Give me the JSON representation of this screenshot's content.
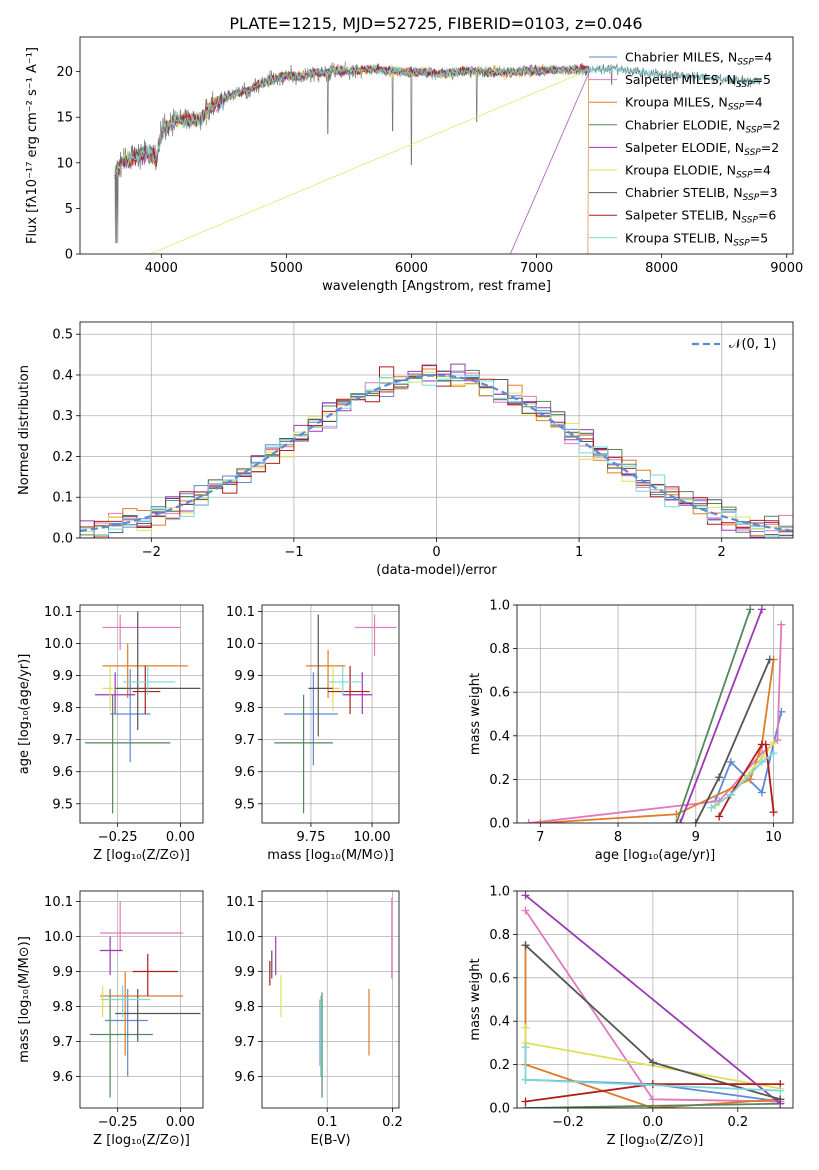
{
  "figure": {
    "title": "PLATE=1215, MJD=52725, FIBERID=0103, z=0.046"
  },
  "model_colors": [
    "#5b8ad6",
    "#e278bd",
    "#e07b28",
    "#55875a",
    "#9b3ab5",
    "#dfe05a",
    "#555555",
    "#b01c1c",
    "#7ad8dc"
  ],
  "chart_data": [
    {
      "id": "spectrum",
      "type": "line",
      "xlabel": "wavelength [Angstrom, rest frame]",
      "ylabel": "Flux [fλ10⁻¹⁷ erg cm⁻² s⁻¹ A⁻¹]",
      "xlim": [
        3350,
        9050
      ],
      "ylim": [
        0,
        23.8
      ],
      "xticks": [
        4000,
        5000,
        6000,
        7000,
        8000,
        9000
      ],
      "yticks": [
        0,
        5,
        10,
        15,
        20
      ],
      "legend_position": "upper-right",
      "legend": [
        {
          "label": "Chabrier MILES, N",
          "sub": "SSP",
          "suffix": "=4"
        },
        {
          "label": "Salpeter MILES, N",
          "sub": "SSP",
          "suffix": "=5"
        },
        {
          "label": "Kroupa MILES, N",
          "sub": "SSP",
          "suffix": "=4"
        },
        {
          "label": "Chabrier ELODIE, N",
          "sub": "SSP",
          "suffix": "=2"
        },
        {
          "label": "Salpeter ELODIE, N",
          "sub": "SSP",
          "suffix": "=2"
        },
        {
          "label": "Kroupa ELODIE, N",
          "sub": "SSP",
          "suffix": "=4"
        },
        {
          "label": "Chabrier STELIB, N",
          "sub": "SSP",
          "suffix": "=3"
        },
        {
          "label": "Salpeter STELIB, N",
          "sub": "SSP",
          "suffix": "=6"
        },
        {
          "label": "Kroupa STELIB, N",
          "sub": "SSP",
          "suffix": "=5"
        }
      ],
      "continuum": [
        [
          3630,
          9
        ],
        [
          3700,
          10.2
        ],
        [
          3800,
          10.6
        ],
        [
          3900,
          11.2
        ],
        [
          3960,
          10.3
        ],
        [
          4000,
          13.5
        ],
        [
          4100,
          14.6
        ],
        [
          4200,
          14.8
        ],
        [
          4300,
          14.6
        ],
        [
          4400,
          16.2
        ],
        [
          4500,
          17.0
        ],
        [
          4600,
          17.6
        ],
        [
          4700,
          18.0
        ],
        [
          4800,
          18.8
        ],
        [
          4900,
          19.1
        ],
        [
          5000,
          19.6
        ],
        [
          5100,
          19.4
        ],
        [
          5200,
          19.8
        ],
        [
          5300,
          19.9
        ],
        [
          5400,
          20.1
        ],
        [
          5500,
          20.0
        ],
        [
          5600,
          20.2
        ],
        [
          5700,
          20.3
        ],
        [
          5800,
          20.1
        ],
        [
          5900,
          20.0
        ],
        [
          6000,
          19.9
        ],
        [
          6100,
          20.0
        ],
        [
          6200,
          19.8
        ],
        [
          6300,
          19.9
        ],
        [
          6400,
          20.0
        ],
        [
          6500,
          20.1
        ],
        [
          6600,
          20.0
        ],
        [
          6700,
          20.0
        ],
        [
          6800,
          19.9
        ],
        [
          6900,
          20.1
        ],
        [
          7000,
          20.1
        ],
        [
          7200,
          20.2
        ],
        [
          7400,
          20.2
        ],
        [
          7600,
          20.3
        ],
        [
          7800,
          20.0
        ],
        [
          8000,
          19.7
        ],
        [
          8200,
          19.5
        ],
        [
          8400,
          19.3
        ],
        [
          8600,
          19.0
        ],
        [
          8800,
          18.9
        ]
      ],
      "data_range": [
        3630,
        8800
      ],
      "model_range": [
        3630,
        7420
      ],
      "data_dips": [
        [
          6000,
          9.8
        ],
        [
          5330,
          13.2
        ],
        [
          5850,
          13.5
        ],
        [
          6520,
          14.5
        ],
        [
          7600,
          18.6
        ]
      ],
      "model_drops": [
        {
          "model": 5,
          "x": 3910
        },
        {
          "model": 4,
          "x": 6790
        },
        {
          "model": 2,
          "x": 7410
        }
      ]
    },
    {
      "id": "residual-histogram",
      "type": "line",
      "xlabel": "(data-model)/error",
      "ylabel": "Normed distribution",
      "xlim": [
        -2.5,
        2.5
      ],
      "ylim": [
        0,
        0.53
      ],
      "xticks": [
        -2,
        -1,
        0,
        1,
        2
      ],
      "yticks": [
        0.0,
        0.1,
        0.2,
        0.3,
        0.4,
        0.5
      ],
      "legend_position": "upper-right",
      "gaussian_label": "𝒩(0, 1)",
      "gaussian_color": "#5b8ad6",
      "bin_width": 0.1
    },
    {
      "id": "age-vs-z",
      "type": "scatter",
      "xlabel": "Z [log₁₀(Z/Z⊙)]",
      "ylabel": "age  [log₁₀(age/yr)]",
      "xlim": [
        -0.4,
        0.09
      ],
      "ylim": [
        9.44,
        10.12
      ],
      "xticks": [
        -0.25,
        0.0
      ],
      "yticks": [
        9.5,
        9.6,
        9.7,
        9.8,
        9.9,
        10.0,
        10.1
      ],
      "points": [
        {
          "x": -0.2,
          "y": 9.78,
          "xe": [
            -0.28,
            -0.12
          ],
          "ye": [
            9.63,
            9.92
          ]
        },
        {
          "x": -0.24,
          "y": 10.05,
          "xe": [
            -0.31,
            0.0
          ],
          "ye": [
            9.98,
            10.09
          ]
        },
        {
          "x": -0.21,
          "y": 9.93,
          "xe": [
            -0.31,
            0.03
          ],
          "ye": [
            9.83,
            10.0
          ]
        },
        {
          "x": -0.27,
          "y": 9.69,
          "xe": [
            -0.38,
            -0.04
          ],
          "ye": [
            9.47,
            9.84
          ]
        },
        {
          "x": -0.26,
          "y": 9.84,
          "xe": [
            -0.34,
            -0.18
          ],
          "ye": [
            9.78,
            9.91
          ]
        },
        {
          "x": -0.28,
          "y": 9.86,
          "xe": [
            -0.31,
            -0.22
          ],
          "ye": [
            9.79,
            9.93
          ]
        },
        {
          "x": -0.17,
          "y": 9.86,
          "xe": [
            -0.26,
            0.08
          ],
          "ye": [
            9.73,
            10.1
          ]
        },
        {
          "x": -0.14,
          "y": 9.85,
          "xe": [
            -0.19,
            -0.08
          ],
          "ye": [
            9.78,
            9.93
          ]
        },
        {
          "x": -0.13,
          "y": 9.88,
          "xe": [
            -0.23,
            -0.02
          ],
          "ye": [
            9.84,
            9.93
          ]
        }
      ]
    },
    {
      "id": "age-vs-mass",
      "type": "scatter",
      "xlabel": "mass [log₁₀(M/M⊙)]",
      "ylabel": "",
      "xlim": [
        9.55,
        10.11
      ],
      "ylim": [
        9.44,
        10.12
      ],
      "xticks": [
        9.75,
        10.0
      ],
      "yticks": [
        9.5,
        9.6,
        9.7,
        9.8,
        9.9,
        10.0,
        10.1
      ],
      "points": [
        {
          "x": 9.76,
          "y": 9.78,
          "xe": [
            9.64,
            9.86
          ],
          "ye": [
            9.62,
            9.91
          ]
        },
        {
          "x": 10.01,
          "y": 10.05,
          "xe": [
            9.93,
            10.1
          ],
          "ye": [
            9.96,
            10.09
          ]
        },
        {
          "x": 9.82,
          "y": 9.93,
          "xe": [
            9.73,
            9.89
          ],
          "ye": [
            9.83,
            9.98
          ]
        },
        {
          "x": 9.72,
          "y": 9.69,
          "xe": [
            9.6,
            9.84
          ],
          "ye": [
            9.47,
            9.84
          ]
        },
        {
          "x": 9.96,
          "y": 9.84,
          "xe": [
            9.88,
            10.0
          ],
          "ye": [
            9.78,
            9.91
          ]
        },
        {
          "x": 9.84,
          "y": 9.86,
          "xe": [
            9.8,
            9.87
          ],
          "ye": [
            9.79,
            9.93
          ]
        },
        {
          "x": 9.78,
          "y": 9.86,
          "xe": [
            9.74,
            9.84
          ],
          "ye": [
            9.71,
            10.09
          ]
        },
        {
          "x": 9.91,
          "y": 9.85,
          "xe": [
            9.82,
            9.99
          ],
          "ye": [
            9.78,
            9.93
          ]
        },
        {
          "x": 9.88,
          "y": 9.88,
          "xe": [
            9.82,
            9.96
          ],
          "ye": [
            9.84,
            9.93
          ]
        }
      ]
    },
    {
      "id": "mass-weight-vs-age",
      "type": "line",
      "xlabel": "age  [log₁₀(age/yr)]",
      "ylabel": "mass weight",
      "xlim": [
        6.7,
        10.25
      ],
      "ylim": [
        0,
        1
      ],
      "xticks": [
        7,
        8,
        9,
        10
      ],
      "yticks": [
        0.0,
        0.2,
        0.4,
        0.6,
        0.8,
        1.0
      ],
      "series": [
        {
          "points": [
            [
              9.25,
              0.1
            ],
            [
              9.45,
              0.28
            ],
            [
              9.85,
              0.14
            ],
            [
              10.1,
              0.51
            ]
          ]
        },
        {
          "points": [
            [
              6.85,
              0.0
            ],
            [
              9.3,
              0.1
            ],
            [
              9.85,
              0.32
            ],
            [
              10.05,
              0.38
            ],
            [
              10.1,
              0.91
            ]
          ]
        },
        {
          "points": [
            [
              7.0,
              0.0
            ],
            [
              8.75,
              0.04
            ],
            [
              9.7,
              0.2
            ],
            [
              9.85,
              0.36
            ],
            [
              10.0,
              0.75
            ]
          ]
        },
        {
          "points": [
            [
              8.75,
              0.0
            ],
            [
              9.7,
              0.98
            ]
          ]
        },
        {
          "points": [
            [
              8.8,
              0.0
            ],
            [
              9.85,
              0.98
            ]
          ]
        },
        {
          "points": [
            [
              9.25,
              0.08
            ],
            [
              9.45,
              0.13
            ],
            [
              9.85,
              0.3
            ],
            [
              10.0,
              0.37
            ]
          ]
        },
        {
          "points": [
            [
              9.0,
              0.0
            ],
            [
              9.3,
              0.21
            ],
            [
              9.95,
              0.75
            ]
          ]
        },
        {
          "points": [
            [
              9.3,
              0.03
            ],
            [
              9.45,
              0.13
            ],
            [
              9.85,
              0.36
            ],
            [
              9.9,
              0.36
            ],
            [
              10.0,
              0.05
            ]
          ]
        },
        {
          "points": [
            [
              9.2,
              0.07
            ],
            [
              9.45,
              0.13
            ],
            [
              9.85,
              0.28
            ],
            [
              10.0,
              0.32
            ]
          ]
        }
      ]
    },
    {
      "id": "mass-vs-z",
      "type": "scatter",
      "xlabel": "Z [log₁₀(Z/Z⊙)]",
      "ylabel": "mass [log₁₀(M/M⊙)]",
      "xlim": [
        -0.4,
        0.09
      ],
      "ylim": [
        9.51,
        10.13
      ],
      "xticks": [
        -0.25,
        0.0
      ],
      "yticks": [
        9.6,
        9.7,
        9.8,
        9.9,
        10.0,
        10.1
      ],
      "points": [
        {
          "x": -0.21,
          "y": 9.76,
          "xe": [
            -0.3,
            -0.13
          ],
          "ye": [
            9.6,
            9.85
          ]
        },
        {
          "x": -0.24,
          "y": 10.01,
          "xe": [
            -0.32,
            0.01
          ],
          "ye": [
            9.96,
            10.1
          ]
        },
        {
          "x": -0.22,
          "y": 9.83,
          "xe": [
            -0.32,
            0.01
          ],
          "ye": [
            9.66,
            9.9
          ]
        },
        {
          "x": -0.28,
          "y": 9.72,
          "xe": [
            -0.36,
            -0.11
          ],
          "ye": [
            9.54,
            9.85
          ]
        },
        {
          "x": -0.28,
          "y": 9.96,
          "xe": [
            -0.32,
            -0.23
          ],
          "ye": [
            9.89,
            10.0
          ]
        },
        {
          "x": -0.31,
          "y": 9.82,
          "xe": [
            -0.32,
            -0.22
          ],
          "ye": [
            9.77,
            9.86
          ]
        },
        {
          "x": -0.17,
          "y": 9.78,
          "xe": [
            -0.26,
            0.08
          ],
          "ye": [
            9.7,
            9.85
          ]
        },
        {
          "x": -0.13,
          "y": 9.9,
          "xe": [
            -0.19,
            -0.01
          ],
          "ye": [
            9.83,
            9.95
          ]
        },
        {
          "x": -0.23,
          "y": 9.82,
          "xe": [
            -0.31,
            -0.12
          ],
          "ye": [
            9.77,
            9.86
          ]
        }
      ]
    },
    {
      "id": "mass-vs-ebv",
      "type": "scatter",
      "xlabel": "E(B-V)",
      "ylabel": "",
      "xlim": [
        0.0,
        0.21
      ],
      "ylim": [
        9.51,
        10.13
      ],
      "xticks": [
        0.1,
        0.2
      ],
      "yticks": [
        9.6,
        9.7,
        9.8,
        9.9,
        10.0,
        10.1
      ],
      "points": [
        {
          "x": 0.089,
          "y": 9.76,
          "ye": [
            9.63,
            9.82
          ]
        },
        {
          "x": 0.199,
          "y": 10.01,
          "ye": [
            9.88,
            10.11
          ]
        },
        {
          "x": 0.164,
          "y": 9.76,
          "ye": [
            9.66,
            9.85
          ]
        },
        {
          "x": 0.092,
          "y": 9.72,
          "ye": [
            9.54,
            9.84
          ]
        },
        {
          "x": 0.021,
          "y": 9.95,
          "ye": [
            9.89,
            10.0
          ]
        },
        {
          "x": 0.029,
          "y": 9.83,
          "ye": [
            9.77,
            9.89
          ]
        },
        {
          "x": 0.015,
          "y": 9.91,
          "ye": [
            9.88,
            9.96
          ]
        },
        {
          "x": 0.012,
          "y": 9.88,
          "ye": [
            9.86,
            9.93
          ]
        },
        {
          "x": 0.09,
          "y": 9.73,
          "ye": [
            9.6,
            9.83
          ]
        }
      ]
    },
    {
      "id": "mass-weight-vs-z",
      "type": "line",
      "xlabel": "Z [log₁₀(Z/Z⊙)]",
      "ylabel": "mass weight",
      "xlim": [
        -0.32,
        0.33
      ],
      "ylim": [
        0,
        1
      ],
      "xticks": [
        -0.2,
        0.0,
        0.2
      ],
      "yticks": [
        0.0,
        0.2,
        0.4,
        0.6,
        0.8,
        1.0
      ],
      "series": [
        {
          "points": [
            [
              -0.3,
              0.13
            ],
            [
              0.0,
              0.11
            ],
            [
              0.3,
              0.03
            ]
          ]
        },
        {
          "points": [
            [
              -0.3,
              0.91
            ],
            [
              0.0,
              0.04
            ],
            [
              0.3,
              0.03
            ]
          ]
        },
        {
          "points": [
            [
              -0.3,
              0.75
            ],
            [
              -0.3,
              0.2
            ],
            [
              0.0,
              0.0
            ],
            [
              0.3,
              0.04
            ]
          ]
        },
        {
          "points": [
            [
              -0.3,
              0.0
            ],
            [
              0.3,
              0.02
            ]
          ]
        },
        {
          "points": [
            [
              -0.3,
              0.98
            ],
            [
              0.3,
              0.02
            ]
          ]
        },
        {
          "points": [
            [
              -0.3,
              0.37
            ],
            [
              -0.3,
              0.3
            ],
            [
              0.3,
              0.09
            ]
          ]
        },
        {
          "points": [
            [
              -0.3,
              0.75
            ],
            [
              0.0,
              0.21
            ],
            [
              0.3,
              0.04
            ]
          ]
        },
        {
          "points": [
            [
              -0.3,
              0.03
            ],
            [
              0.0,
              0.11
            ],
            [
              0.3,
              0.11
            ]
          ]
        },
        {
          "points": [
            [
              -0.3,
              0.28
            ],
            [
              -0.3,
              0.13
            ],
            [
              0.3,
              0.08
            ]
          ]
        }
      ]
    }
  ]
}
